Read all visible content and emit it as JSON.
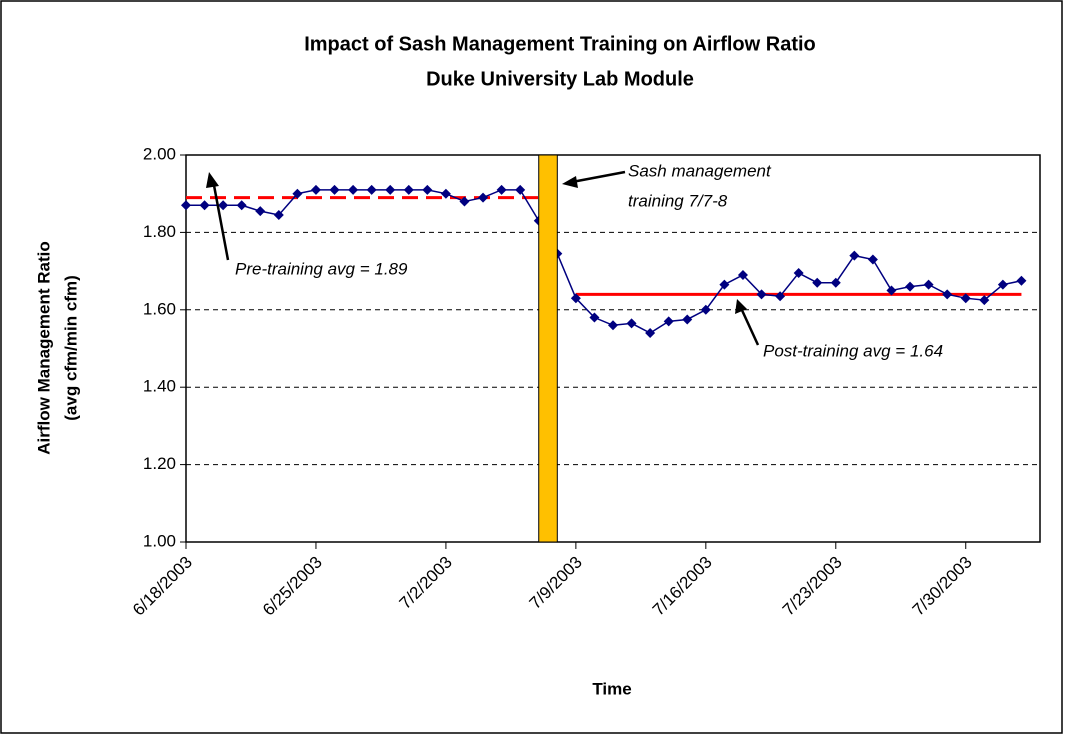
{
  "chart_data": {
    "type": "line",
    "title": [
      "Impact of Sash Management Training on Airflow Ratio",
      "Duke University Lab Module"
    ],
    "ylabel": [
      "Airflow Management Ratio",
      "(avg cfm/min cfm)"
    ],
    "xlabel": "Time",
    "x": [
      "2003-06-18",
      "2003-06-19",
      "2003-06-20",
      "2003-06-21",
      "2003-06-22",
      "2003-06-23",
      "2003-06-24",
      "2003-06-25",
      "2003-06-26",
      "2003-06-27",
      "2003-06-28",
      "2003-06-29",
      "2003-06-30",
      "2003-07-01",
      "2003-07-02",
      "2003-07-03",
      "2003-07-04",
      "2003-07-05",
      "2003-07-06",
      "2003-07-07",
      "2003-07-08",
      "2003-07-09",
      "2003-07-10",
      "2003-07-11",
      "2003-07-12",
      "2003-07-13",
      "2003-07-14",
      "2003-07-15",
      "2003-07-16",
      "2003-07-17",
      "2003-07-18",
      "2003-07-19",
      "2003-07-20",
      "2003-07-21",
      "2003-07-22",
      "2003-07-23",
      "2003-07-24",
      "2003-07-25",
      "2003-07-26",
      "2003-07-27",
      "2003-07-28",
      "2003-07-29",
      "2003-07-30",
      "2003-07-31",
      "2003-08-01",
      "2003-08-02"
    ],
    "series": [
      {
        "color": "#000080",
        "values": [
          1.87,
          1.87,
          1.87,
          1.87,
          1.855,
          1.845,
          1.9,
          1.91,
          1.91,
          1.91,
          1.91,
          1.91,
          1.91,
          1.91,
          1.9,
          1.88,
          1.89,
          1.91,
          1.91,
          1.83,
          1.745,
          1.63,
          1.58,
          1.56,
          1.565,
          1.54,
          1.57,
          1.575,
          1.6,
          1.665,
          1.69,
          1.64,
          1.635,
          1.695,
          1.67,
          1.67,
          1.74,
          1.73,
          1.65,
          1.66,
          1.665,
          1.64,
          1.63,
          1.625,
          1.665,
          1.675
        ]
      }
    ],
    "xlim": [
      "2003-06-18",
      "2003-08-03"
    ],
    "xticks": [
      {
        "value": "2003-06-18",
        "label": "6/18/2003"
      },
      {
        "value": "2003-06-25",
        "label": "6/25/2003"
      },
      {
        "value": "2003-07-02",
        "label": "7/2/2003"
      },
      {
        "value": "2003-07-09",
        "label": "7/9/2003"
      },
      {
        "value": "2003-07-16",
        "label": "7/16/2003"
      },
      {
        "value": "2003-07-23",
        "label": "7/23/2003"
      },
      {
        "value": "2003-07-30",
        "label": "7/30/2003"
      }
    ],
    "ylim": [
      1,
      2
    ],
    "yticks": [
      {
        "value": 1,
        "label": "1.00"
      },
      {
        "value": 1.2,
        "label": "1.20"
      },
      {
        "value": 1.4,
        "label": "1.40"
      },
      {
        "value": 1.6,
        "label": "1.60"
      },
      {
        "value": 1.8,
        "label": "1.80"
      },
      {
        "value": 2,
        "label": "2.00"
      }
    ],
    "grid": true,
    "reference_lines": [
      {
        "value": 1.89,
        "x": [
          "2003-06-18",
          "2003-07-07"
        ],
        "color": "#ff0000",
        "dashed": true,
        "label": "Pre-training avg = 1.89"
      },
      {
        "value": 1.64,
        "x": [
          "2003-07-09",
          "2003-08-02"
        ],
        "color": "#ff0000",
        "dashed": false,
        "label": "Post-training avg = 1.64"
      }
    ],
    "training_band": {
      "x": [
        "2003-07-07",
        "2003-07-08"
      ],
      "color": "#ffc000",
      "label": [
        "Sash management",
        "training 7/7-8"
      ]
    }
  }
}
